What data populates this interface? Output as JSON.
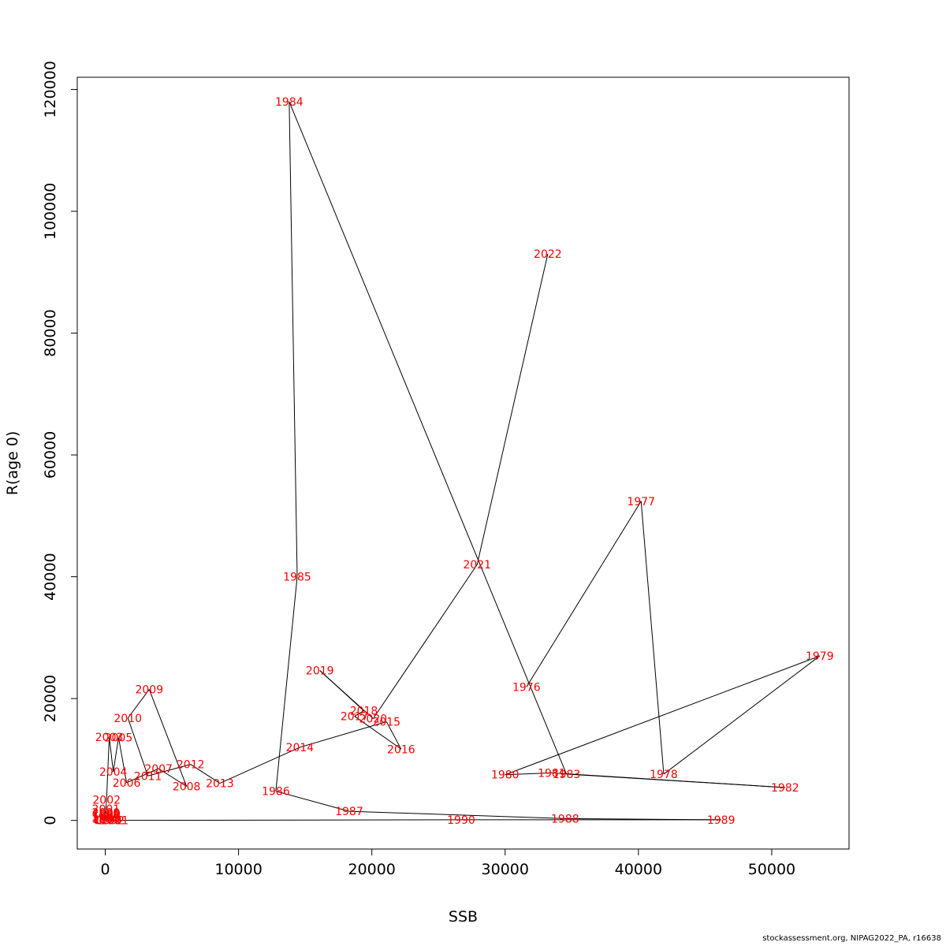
{
  "footer": {
    "credit": "stockassessment.org, NIPAG2022_PA, r16638"
  },
  "chart_data": {
    "type": "scatter",
    "subtype": "connected-labeled-points",
    "xlabel": "SSB",
    "ylabel": "R(age 0)",
    "xlim": [
      -2100,
      55800
    ],
    "ylim": [
      -4700,
      122000
    ],
    "x_ticks": [
      0,
      10000,
      20000,
      30000,
      40000,
      50000
    ],
    "y_ticks": [
      0,
      20000,
      40000,
      60000,
      80000,
      100000,
      120000
    ],
    "grid": false,
    "legend": "none",
    "line_color": "#000000",
    "label_color": "#ff0000",
    "points": [
      {
        "year": "1976",
        "x": 31600,
        "y": 21900
      },
      {
        "year": "1977",
        "x": 40200,
        "y": 52400
      },
      {
        "year": "1978",
        "x": 41900,
        "y": 7600
      },
      {
        "year": "1979",
        "x": 53600,
        "y": 27000
      },
      {
        "year": "1980",
        "x": 30000,
        "y": 7500
      },
      {
        "year": "1981",
        "x": 33500,
        "y": 7800
      },
      {
        "year": "1982",
        "x": 51000,
        "y": 5400
      },
      {
        "year": "1983",
        "x": 34600,
        "y": 7600
      },
      {
        "year": "1984",
        "x": 13800,
        "y": 118000
      },
      {
        "year": "1985",
        "x": 14400,
        "y": 40000
      },
      {
        "year": "1986",
        "x": 12800,
        "y": 4800
      },
      {
        "year": "1987",
        "x": 18300,
        "y": 1500
      },
      {
        "year": "1988",
        "x": 34500,
        "y": 300
      },
      {
        "year": "1989",
        "x": 46200,
        "y": 100
      },
      {
        "year": "1990",
        "x": 26700,
        "y": 100
      },
      {
        "year": "1991",
        "x": 700,
        "y": 0
      },
      {
        "year": "1992",
        "x": 400,
        "y": 0
      },
      {
        "year": "1993",
        "x": 200,
        "y": 100
      },
      {
        "year": "1994",
        "x": 100,
        "y": 200
      },
      {
        "year": "1995",
        "x": 50,
        "y": 300
      },
      {
        "year": "1996",
        "x": 0,
        "y": 500
      },
      {
        "year": "1997",
        "x": 50,
        "y": 700
      },
      {
        "year": "1998",
        "x": 100,
        "y": 900
      },
      {
        "year": "1999",
        "x": 100,
        "y": 1100
      },
      {
        "year": "2000",
        "x": 50,
        "y": 1300
      },
      {
        "year": "2001",
        "x": 50,
        "y": 1900
      },
      {
        "year": "2002",
        "x": 100,
        "y": 3400
      },
      {
        "year": "2003",
        "x": 300,
        "y": 13700
      },
      {
        "year": "2004",
        "x": 600,
        "y": 8000
      },
      {
        "year": "2005",
        "x": 1000,
        "y": 13600
      },
      {
        "year": "2006",
        "x": 1600,
        "y": 6200
      },
      {
        "year": "2007",
        "x": 4000,
        "y": 8500
      },
      {
        "year": "2008",
        "x": 6100,
        "y": 5600
      },
      {
        "year": "2009",
        "x": 3300,
        "y": 21500
      },
      {
        "year": "2010",
        "x": 1700,
        "y": 16800
      },
      {
        "year": "2011",
        "x": 3200,
        "y": 7300
      },
      {
        "year": "2012",
        "x": 6400,
        "y": 9200
      },
      {
        "year": "2013",
        "x": 8600,
        "y": 6100
      },
      {
        "year": "2014",
        "x": 14600,
        "y": 12000
      },
      {
        "year": "2015",
        "x": 21100,
        "y": 16200
      },
      {
        "year": "2016",
        "x": 22200,
        "y": 11700
      },
      {
        "year": "2017",
        "x": 18700,
        "y": 17100
      },
      {
        "year": "2018",
        "x": 19400,
        "y": 18000
      },
      {
        "year": "2019",
        "x": 16100,
        "y": 24600
      },
      {
        "year": "2020",
        "x": 20100,
        "y": 16700
      },
      {
        "year": "2021",
        "x": 27900,
        "y": 42000
      },
      {
        "year": "2022",
        "x": 33200,
        "y": 93000
      }
    ]
  }
}
